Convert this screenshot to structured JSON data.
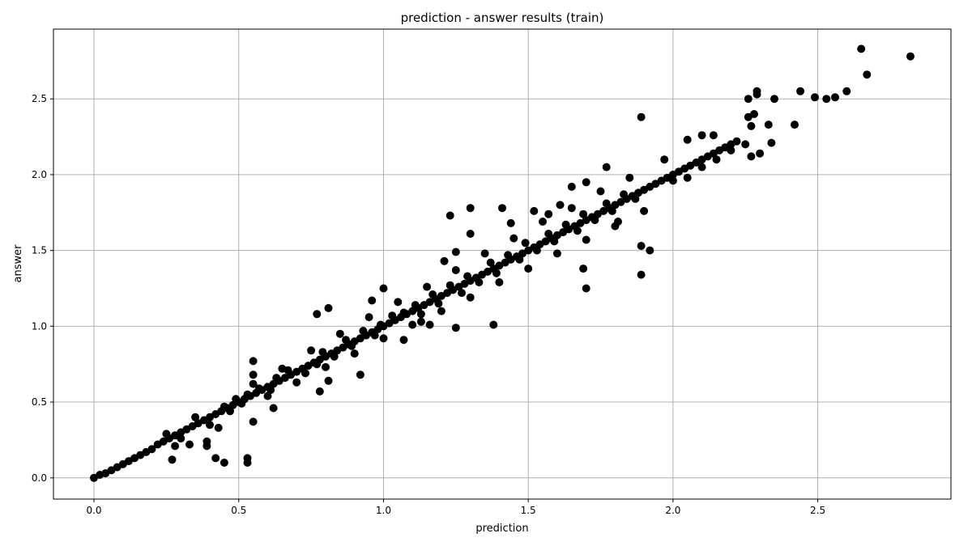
{
  "chart_data": {
    "type": "scatter",
    "title": "prediction - answer results (train)",
    "xlabel": "prediction",
    "ylabel": "answer",
    "xlim": [
      -0.14,
      2.96
    ],
    "ylim": [
      -0.14,
      2.96
    ],
    "xticks": [
      0.0,
      0.5,
      1.0,
      1.5,
      2.0,
      2.5
    ],
    "yticks": [
      0.0,
      0.5,
      1.0,
      1.5,
      2.0,
      2.5
    ],
    "xtick_labels": [
      "0.0",
      "0.5",
      "1.0",
      "1.5",
      "2.0",
      "2.5"
    ],
    "ytick_labels": [
      "0.0",
      "0.5",
      "1.0",
      "1.5",
      "2.0",
      "2.5"
    ],
    "grid": true,
    "marker_color": "#000000",
    "series": [
      {
        "points": [
          [
            0.0,
            0.0
          ],
          [
            0.02,
            0.02
          ],
          [
            0.04,
            0.03
          ],
          [
            0.06,
            0.05
          ],
          [
            0.08,
            0.07
          ],
          [
            0.1,
            0.09
          ],
          [
            0.12,
            0.11
          ],
          [
            0.14,
            0.13
          ],
          [
            0.16,
            0.15
          ],
          [
            0.18,
            0.17
          ],
          [
            0.2,
            0.19
          ],
          [
            0.22,
            0.22
          ],
          [
            0.24,
            0.24
          ],
          [
            0.26,
            0.26
          ],
          [
            0.28,
            0.28
          ],
          [
            0.3,
            0.3
          ],
          [
            0.32,
            0.32
          ],
          [
            0.34,
            0.34
          ],
          [
            0.36,
            0.36
          ],
          [
            0.38,
            0.38
          ],
          [
            0.4,
            0.4
          ],
          [
            0.42,
            0.42
          ],
          [
            0.44,
            0.44
          ],
          [
            0.46,
            0.46
          ],
          [
            0.48,
            0.48
          ],
          [
            0.5,
            0.5
          ],
          [
            0.52,
            0.52
          ],
          [
            0.54,
            0.54
          ],
          [
            0.56,
            0.56
          ],
          [
            0.58,
            0.58
          ],
          [
            0.6,
            0.6
          ],
          [
            0.62,
            0.62
          ],
          [
            0.64,
            0.64
          ],
          [
            0.66,
            0.66
          ],
          [
            0.68,
            0.68
          ],
          [
            0.7,
            0.7
          ],
          [
            0.72,
            0.72
          ],
          [
            0.74,
            0.74
          ],
          [
            0.76,
            0.76
          ],
          [
            0.78,
            0.78
          ],
          [
            0.8,
            0.8
          ],
          [
            0.82,
            0.82
          ],
          [
            0.84,
            0.84
          ],
          [
            0.86,
            0.86
          ],
          [
            0.88,
            0.88
          ],
          [
            0.9,
            0.9
          ],
          [
            0.92,
            0.92
          ],
          [
            0.94,
            0.94
          ],
          [
            0.96,
            0.96
          ],
          [
            0.98,
            0.98
          ],
          [
            1.0,
            1.0
          ],
          [
            1.02,
            1.02
          ],
          [
            1.04,
            1.04
          ],
          [
            1.06,
            1.06
          ],
          [
            1.08,
            1.08
          ],
          [
            1.1,
            1.1
          ],
          [
            1.12,
            1.12
          ],
          [
            1.14,
            1.14
          ],
          [
            1.16,
            1.16
          ],
          [
            1.18,
            1.18
          ],
          [
            1.2,
            1.2
          ],
          [
            1.22,
            1.22
          ],
          [
            1.24,
            1.24
          ],
          [
            1.26,
            1.26
          ],
          [
            1.28,
            1.28
          ],
          [
            1.3,
            1.3
          ],
          [
            1.32,
            1.32
          ],
          [
            1.34,
            1.34
          ],
          [
            1.36,
            1.36
          ],
          [
            1.38,
            1.38
          ],
          [
            1.4,
            1.4
          ],
          [
            1.42,
            1.42
          ],
          [
            1.44,
            1.44
          ],
          [
            1.46,
            1.46
          ],
          [
            1.48,
            1.48
          ],
          [
            1.5,
            1.5
          ],
          [
            1.52,
            1.52
          ],
          [
            1.54,
            1.54
          ],
          [
            1.56,
            1.56
          ],
          [
            1.58,
            1.58
          ],
          [
            1.6,
            1.6
          ],
          [
            1.62,
            1.62
          ],
          [
            1.64,
            1.64
          ],
          [
            1.66,
            1.66
          ],
          [
            1.68,
            1.68
          ],
          [
            1.7,
            1.7
          ],
          [
            1.72,
            1.72
          ],
          [
            1.74,
            1.74
          ],
          [
            1.76,
            1.76
          ],
          [
            1.78,
            1.78
          ],
          [
            1.8,
            1.8
          ],
          [
            1.82,
            1.82
          ],
          [
            1.84,
            1.84
          ],
          [
            1.86,
            1.86
          ],
          [
            1.88,
            1.88
          ],
          [
            1.9,
            1.9
          ],
          [
            1.92,
            1.92
          ],
          [
            1.94,
            1.94
          ],
          [
            1.96,
            1.96
          ],
          [
            1.98,
            1.98
          ],
          [
            2.0,
            2.0
          ],
          [
            2.02,
            2.02
          ],
          [
            2.04,
            2.04
          ],
          [
            2.06,
            2.06
          ],
          [
            2.08,
            2.08
          ],
          [
            2.1,
            2.1
          ],
          [
            2.12,
            2.12
          ],
          [
            2.14,
            2.14
          ],
          [
            2.16,
            2.16
          ],
          [
            2.18,
            2.18
          ],
          [
            2.2,
            2.2
          ],
          [
            2.22,
            2.22
          ],
          [
            0.25,
            0.29
          ],
          [
            0.35,
            0.4
          ],
          [
            0.55,
            0.62
          ],
          [
            0.65,
            0.72
          ],
          [
            0.75,
            0.84
          ],
          [
            0.85,
            0.95
          ],
          [
            0.95,
            1.06
          ],
          [
            1.05,
            1.16
          ],
          [
            1.15,
            1.26
          ],
          [
            1.25,
            1.37
          ],
          [
            1.35,
            1.48
          ],
          [
            1.45,
            1.58
          ],
          [
            1.55,
            1.69
          ],
          [
            1.65,
            1.78
          ],
          [
            1.75,
            1.89
          ],
          [
            1.85,
            1.98
          ],
          [
            0.3,
            0.26
          ],
          [
            0.4,
            0.35
          ],
          [
            0.6,
            0.54
          ],
          [
            0.7,
            0.63
          ],
          [
            0.8,
            0.73
          ],
          [
            0.9,
            0.82
          ],
          [
            1.0,
            0.92
          ],
          [
            1.1,
            1.01
          ],
          [
            1.2,
            1.1
          ],
          [
            1.3,
            1.19
          ],
          [
            1.4,
            1.29
          ],
          [
            1.5,
            1.38
          ],
          [
            1.6,
            1.48
          ],
          [
            1.7,
            1.57
          ],
          [
            1.8,
            1.66
          ],
          [
            1.9,
            1.76
          ],
          [
            2.0,
            1.96
          ],
          [
            2.05,
            1.98
          ],
          [
            2.1,
            2.05
          ],
          [
            2.15,
            2.1
          ],
          [
            2.2,
            2.16
          ],
          [
            2.25,
            2.2
          ],
          [
            0.99,
            1.01
          ],
          [
            1.03,
            1.07
          ],
          [
            1.07,
            1.09
          ],
          [
            1.11,
            1.14
          ],
          [
            1.13,
            1.08
          ],
          [
            1.17,
            1.21
          ],
          [
            1.19,
            1.15
          ],
          [
            1.23,
            1.27
          ],
          [
            1.27,
            1.22
          ],
          [
            1.29,
            1.33
          ],
          [
            1.33,
            1.29
          ],
          [
            1.37,
            1.42
          ],
          [
            1.39,
            1.35
          ],
          [
            1.43,
            1.47
          ],
          [
            1.47,
            1.44
          ],
          [
            1.49,
            1.55
          ],
          [
            1.53,
            1.5
          ],
          [
            1.57,
            1.61
          ],
          [
            1.59,
            1.56
          ],
          [
            1.63,
            1.67
          ],
          [
            1.67,
            1.63
          ],
          [
            1.69,
            1.74
          ],
          [
            1.73,
            1.7
          ],
          [
            1.77,
            1.81
          ],
          [
            1.79,
            1.76
          ],
          [
            1.83,
            1.87
          ],
          [
            1.87,
            1.84
          ],
          [
            0.79,
            0.83
          ],
          [
            0.83,
            0.8
          ],
          [
            0.87,
            0.91
          ],
          [
            0.89,
            0.87
          ],
          [
            0.93,
            0.97
          ],
          [
            0.97,
            0.94
          ],
          [
            0.67,
            0.71
          ],
          [
            0.73,
            0.69
          ],
          [
            0.77,
            0.75
          ],
          [
            0.57,
            0.59
          ],
          [
            0.61,
            0.58
          ],
          [
            0.63,
            0.66
          ],
          [
            0.45,
            0.47
          ],
          [
            0.47,
            0.44
          ],
          [
            0.49,
            0.52
          ],
          [
            0.51,
            0.49
          ],
          [
            0.53,
            0.55
          ],
          [
            0.55,
            0.77
          ],
          [
            0.55,
            0.68
          ],
          [
            0.55,
            0.37
          ],
          [
            0.45,
            0.1
          ],
          [
            0.42,
            0.13
          ],
          [
            0.53,
            0.13
          ],
          [
            0.53,
            0.1
          ],
          [
            0.43,
            0.33
          ],
          [
            0.39,
            0.21
          ],
          [
            0.39,
            0.24
          ],
          [
            0.27,
            0.12
          ],
          [
            0.33,
            0.22
          ],
          [
            0.28,
            0.21
          ],
          [
            0.62,
            0.46
          ],
          [
            0.78,
            0.57
          ],
          [
            0.81,
            0.64
          ],
          [
            0.77,
            1.08
          ],
          [
            0.81,
            1.12
          ],
          [
            0.92,
            0.68
          ],
          [
            0.96,
            1.17
          ],
          [
            1.0,
            1.25
          ],
          [
            1.07,
            0.91
          ],
          [
            1.21,
            1.43
          ],
          [
            1.13,
            1.03
          ],
          [
            1.16,
            1.01
          ],
          [
            1.25,
            0.99
          ],
          [
            1.38,
            1.01
          ],
          [
            1.3,
            1.78
          ],
          [
            1.3,
            1.61
          ],
          [
            1.25,
            1.49
          ],
          [
            1.23,
            1.73
          ],
          [
            1.41,
            1.78
          ],
          [
            1.44,
            1.68
          ],
          [
            1.52,
            1.76
          ],
          [
            1.61,
            1.8
          ],
          [
            1.57,
            1.74
          ],
          [
            1.7,
            1.95
          ],
          [
            1.65,
            1.92
          ],
          [
            1.69,
            1.38
          ],
          [
            1.7,
            1.25
          ],
          [
            1.77,
            2.05
          ],
          [
            1.81,
            1.69
          ],
          [
            1.89,
            2.38
          ],
          [
            1.89,
            1.53
          ],
          [
            1.92,
            1.5
          ],
          [
            1.89,
            1.34
          ],
          [
            1.97,
            2.1
          ],
          [
            2.1,
            2.26
          ],
          [
            2.14,
            2.26
          ],
          [
            2.05,
            2.23
          ],
          [
            2.26,
            2.38
          ],
          [
            2.26,
            2.5
          ],
          [
            2.29,
            2.53
          ],
          [
            2.29,
            2.55
          ],
          [
            2.27,
            2.32
          ],
          [
            2.33,
            2.33
          ],
          [
            2.35,
            2.5
          ],
          [
            2.28,
            2.4
          ],
          [
            2.3,
            2.14
          ],
          [
            2.27,
            2.12
          ],
          [
            2.34,
            2.21
          ],
          [
            2.42,
            2.33
          ],
          [
            2.44,
            2.55
          ],
          [
            2.49,
            2.51
          ],
          [
            2.53,
            2.5
          ],
          [
            2.56,
            2.51
          ],
          [
            2.6,
            2.55
          ],
          [
            2.65,
            2.83
          ],
          [
            2.67,
            2.66
          ],
          [
            2.82,
            2.78
          ]
        ]
      }
    ]
  }
}
